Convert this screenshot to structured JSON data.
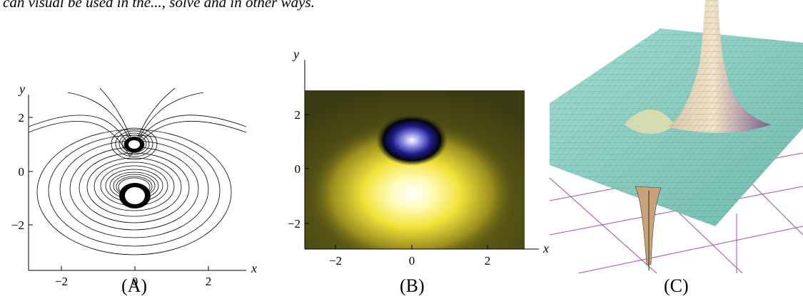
{
  "top_text": "can visual be used in the..., solve and in other ways.",
  "panels": [
    {
      "caption": "(A)",
      "x_axis_label": "x",
      "y_axis_label": "y",
      "x_ticks": [
        "−2",
        "0",
        "2"
      ],
      "y_ticks": [
        "−2",
        "0",
        "2"
      ]
    },
    {
      "caption": "(B)",
      "x_axis_label": "x",
      "y_axis_label": "y",
      "x_ticks": [
        "−2",
        "0",
        "2"
      ],
      "y_ticks": [
        "−2",
        "0",
        "2"
      ],
      "colors": {
        "background": "#4a4a10",
        "positive_glow": "#fff27a",
        "negative_core": "#1c1c8a"
      }
    },
    {
      "caption": "(C)",
      "surface_color": "#8fd2c4",
      "grid_color": "#a24fa4"
    }
  ]
}
